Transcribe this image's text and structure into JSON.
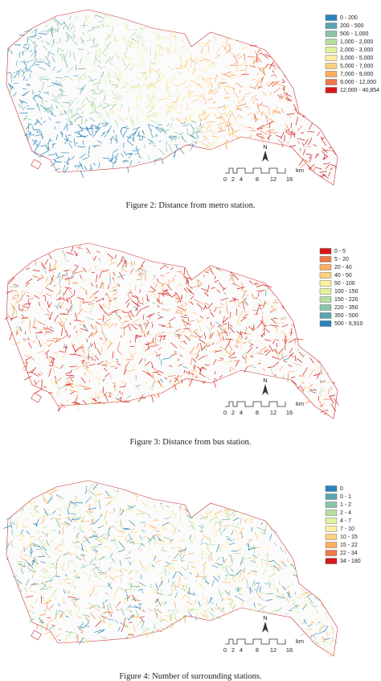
{
  "figures": [
    {
      "legend": [
        {
          "label": "0 - 200",
          "color": "#2b83ba"
        },
        {
          "label": "200 - 500",
          "color": "#5ba5b2"
        },
        {
          "label": "500 - 1,000",
          "color": "#8ac5a8"
        },
        {
          "label": "1,000 - 2,000",
          "color": "#b7dea0"
        },
        {
          "label": "2,000 - 3,000",
          "color": "#e0f29c"
        },
        {
          "label": "3,000 - 5,000",
          "color": "#fef0a0"
        },
        {
          "label": "5,000 - 7,000",
          "color": "#fed17f"
        },
        {
          "label": "7,000 - 9,000",
          "color": "#fdae61"
        },
        {
          "label": "9,000 - 12,000",
          "color": "#ef7a4a"
        },
        {
          "label": "12,000 - 40,854",
          "color": "#d7191c"
        }
      ],
      "north": "N",
      "scale_ticks": [
        "0",
        "2",
        "4",
        "8",
        "12",
        "16"
      ],
      "scale_unit": "km",
      "caption": "Figure 2: Distance from metro station."
    },
    {
      "legend": [
        {
          "label": "0 - 5",
          "color": "#d7191c"
        },
        {
          "label": "5 - 20",
          "color": "#ef7a4a"
        },
        {
          "label": "20 - 40",
          "color": "#fdae61"
        },
        {
          "label": "40 - 50",
          "color": "#fed17f"
        },
        {
          "label": "50 - 100",
          "color": "#fef0a0"
        },
        {
          "label": "100 - 150",
          "color": "#e0f29c"
        },
        {
          "label": "150 - 220",
          "color": "#b7dea0"
        },
        {
          "label": "220 - 350",
          "color": "#8ac5a8"
        },
        {
          "label": "350 - 500",
          "color": "#5ba5b2"
        },
        {
          "label": "500 - 6,910",
          "color": "#2b83ba"
        }
      ],
      "north": "N",
      "scale_ticks": [
        "0",
        "2",
        "4",
        "8",
        "12",
        "16"
      ],
      "scale_unit": "km",
      "caption": "Figure 3: Distance from bus station."
    },
    {
      "legend": [
        {
          "label": "0",
          "color": "#2b83ba"
        },
        {
          "label": "0 - 1",
          "color": "#5ba5b2"
        },
        {
          "label": "1 - 2",
          "color": "#8ac5a8"
        },
        {
          "label": "2 - 4",
          "color": "#b7dea0"
        },
        {
          "label": "4 - 7",
          "color": "#e0f29c"
        },
        {
          "label": "7 - 10",
          "color": "#fef0a0"
        },
        {
          "label": "10 - 15",
          "color": "#fed17f"
        },
        {
          "label": "15 - 22",
          "color": "#fdae61"
        },
        {
          "label": "22 - 34",
          "color": "#ef7a4a"
        },
        {
          "label": "34 - 180",
          "color": "#d7191c"
        }
      ],
      "north": "N",
      "scale_ticks": [
        "0",
        "2",
        "4",
        "8",
        "12",
        "16"
      ],
      "scale_unit": "km",
      "caption": "Figure 4: Number of surrounding stations."
    }
  ]
}
